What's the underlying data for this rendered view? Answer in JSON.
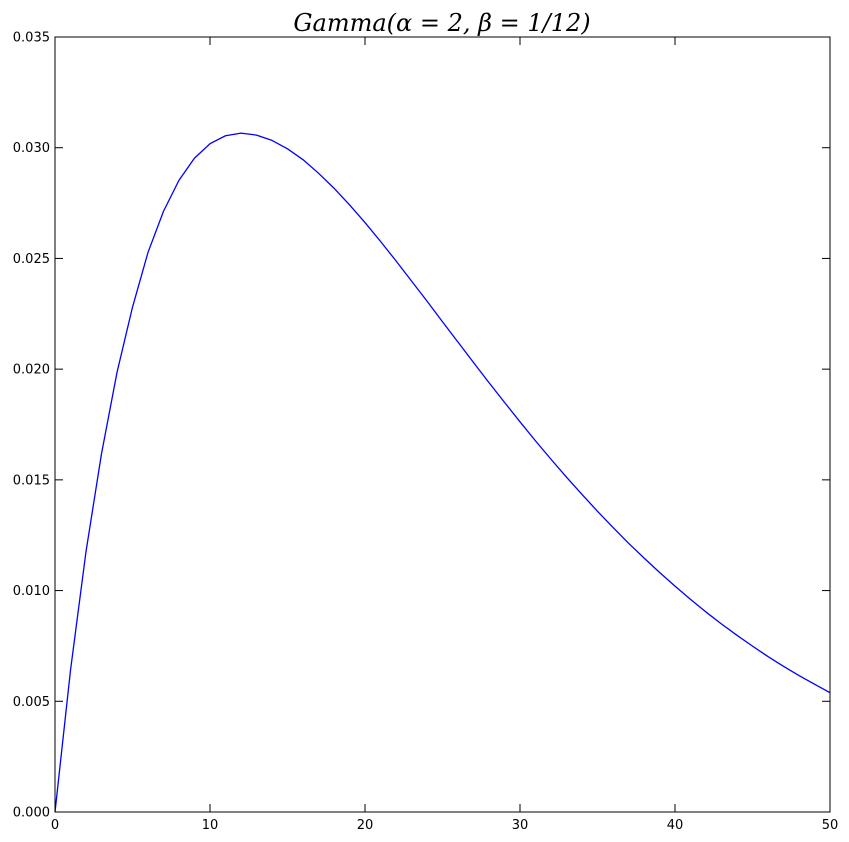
{
  "chart_data": {
    "type": "line",
    "title": "Gamma(α = 2, β = 1/12)",
    "xlabel": "",
    "ylabel": "",
    "xlim": [
      0,
      50
    ],
    "ylim": [
      0,
      0.035
    ],
    "x_ticks": [
      "0",
      "10",
      "20",
      "30",
      "40",
      "50"
    ],
    "y_ticks": [
      "0.000",
      "0.005",
      "0.010",
      "0.015",
      "0.020",
      "0.025",
      "0.030",
      "0.035"
    ],
    "grid": false,
    "legend": "none",
    "series": [
      {
        "color": "#0000ff",
        "x": [
          0,
          1,
          2,
          3,
          4,
          5,
          6,
          7,
          8,
          9,
          10,
          11,
          12,
          13,
          14,
          15,
          16,
          17,
          18,
          19,
          20,
          21,
          22,
          23,
          24,
          25,
          26,
          27,
          28,
          29,
          30,
          31,
          32,
          33,
          34,
          35,
          36,
          37,
          38,
          39,
          40,
          41,
          42,
          43,
          44,
          45,
          46,
          47,
          48,
          49,
          50
        ],
        "values": [
          0.0,
          0.0064,
          0.01176,
          0.01618,
          0.01985,
          0.0228,
          0.02527,
          0.02713,
          0.02853,
          0.02953,
          0.03018,
          0.03054,
          0.03066,
          0.03057,
          0.03033,
          0.02995,
          0.02946,
          0.02885,
          0.02817,
          0.02742,
          0.02662,
          0.02577,
          0.02489,
          0.02398,
          0.02307,
          0.02214,
          0.02122,
          0.0203,
          0.01939,
          0.0185,
          0.01762,
          0.01676,
          0.01593,
          0.01512,
          0.01434,
          0.01358,
          0.01285,
          0.01214,
          0.01147,
          0.01082,
          0.0102,
          0.0096,
          0.00903,
          0.00849,
          0.00798,
          0.00749,
          0.00702,
          0.00658,
          0.00616,
          0.00577,
          0.00539
        ]
      }
    ]
  }
}
